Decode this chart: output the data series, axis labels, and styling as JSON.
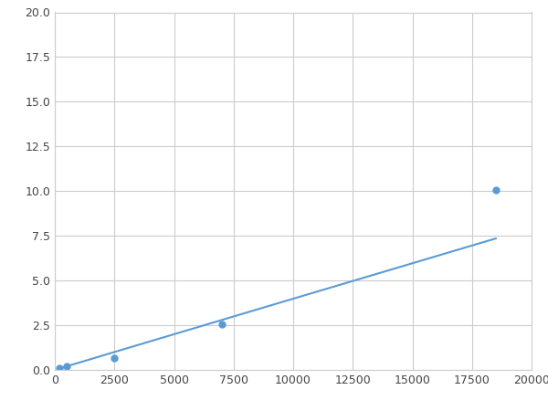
{
  "x_points": [
    200,
    500,
    2500,
    7000,
    18500
  ],
  "y_points": [
    0.1,
    0.2,
    0.65,
    2.55,
    10.05
  ],
  "line_color": "#5b9bd5",
  "marker_color": "#5b9bd5",
  "marker_size": 5,
  "line_width": 1.5,
  "xlim": [
    0,
    20000
  ],
  "ylim": [
    0,
    20
  ],
  "xticks": [
    0,
    2500,
    5000,
    7500,
    10000,
    12500,
    15000,
    17500,
    20000
  ],
  "yticks": [
    0.0,
    2.5,
    5.0,
    7.5,
    10.0,
    12.5,
    15.0,
    17.5,
    20.0
  ],
  "grid_color": "#cccccc",
  "background_color": "#ffffff",
  "figsize": [
    6.0,
    4.5
  ],
  "dpi": 100
}
